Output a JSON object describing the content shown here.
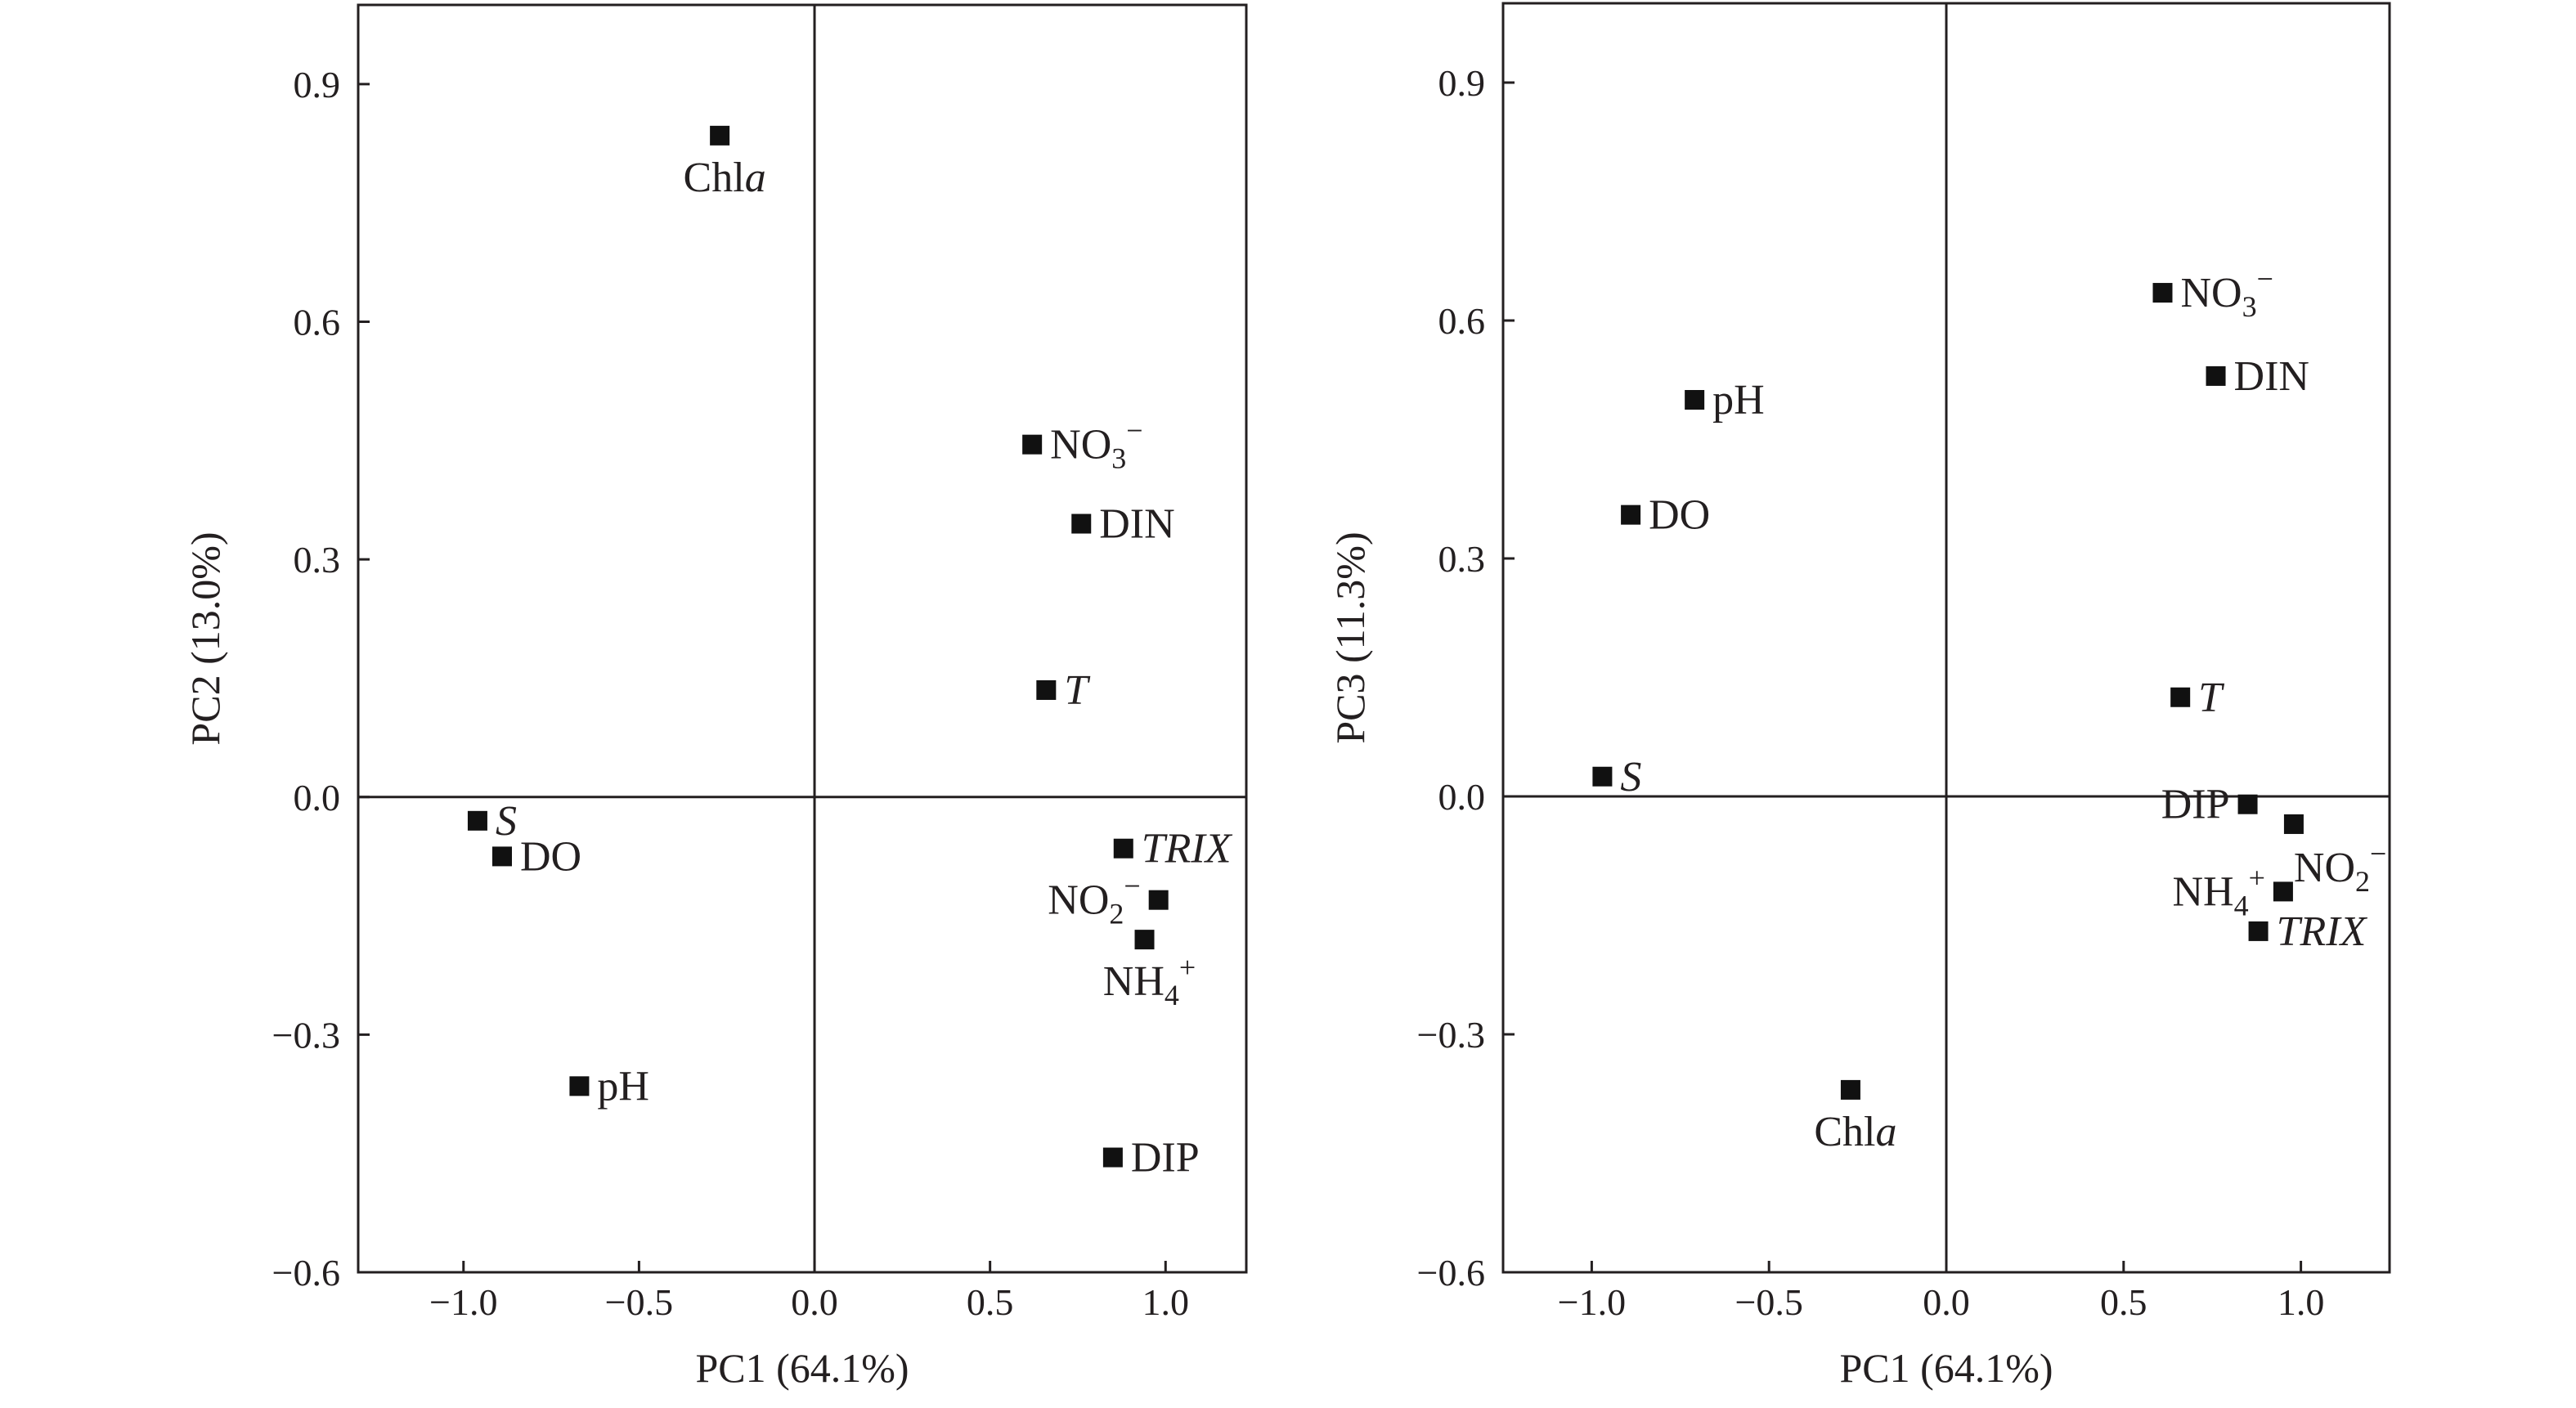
{
  "chart_data": [
    {
      "type": "scatter",
      "title": "",
      "xlabel": "PC1 (64.1%)",
      "ylabel": "PC2 (13.0%)",
      "xlim": [
        -1.3,
        1.23
      ],
      "ylim": [
        -0.6,
        1.0
      ],
      "xticks": [
        -1.0,
        -0.5,
        0.0,
        0.5,
        1.0
      ],
      "xtick_labels": [
        "−1.0",
        "−0.5",
        "0.0",
        "0.5",
        "1.0"
      ],
      "yticks": [
        -0.6,
        -0.3,
        0.0,
        0.3,
        0.6,
        0.9
      ],
      "ytick_labels": [
        "−0.6",
        "−0.3",
        "0.0",
        "0.3",
        "0.6",
        "0.9"
      ],
      "grid": false,
      "legend": "none",
      "points": [
        {
          "name": "Chl",
          "suffix": "a",
          "x": -0.27,
          "y": 0.835,
          "label_pos": "below"
        },
        {
          "name": "NO",
          "sub": "3",
          "sup": "−",
          "x": 0.62,
          "y": 0.445,
          "label_pos": "right"
        },
        {
          "name": "DIN",
          "x": 0.76,
          "y": 0.345,
          "label_pos": "right"
        },
        {
          "name": "T",
          "italic": true,
          "x": 0.66,
          "y": 0.135,
          "label_pos": "right"
        },
        {
          "name": "S",
          "italic": true,
          "x": -0.96,
          "y": -0.03,
          "label_pos": "right"
        },
        {
          "name": "DO",
          "x": -0.89,
          "y": -0.075,
          "label_pos": "right"
        },
        {
          "name": "TRIX",
          "italic": true,
          "x": 0.88,
          "y": -0.065,
          "label_pos": "right"
        },
        {
          "name": "NO",
          "sub": "2",
          "sup": "−",
          "x": 0.98,
          "y": -0.13,
          "label_pos": "left"
        },
        {
          "name": "NH",
          "sub": "4",
          "sup": "+",
          "x": 0.94,
          "y": -0.18,
          "label_pos": "below"
        },
        {
          "name": "pH",
          "x": -0.67,
          "y": -0.365,
          "label_pos": "right"
        },
        {
          "name": "DIP",
          "x": 0.85,
          "y": -0.455,
          "label_pos": "right"
        }
      ]
    },
    {
      "type": "scatter",
      "title": "",
      "xlabel": "PC1 (64.1%)",
      "ylabel": "PC3 (11.3%)",
      "xlim": [
        -1.25,
        1.25
      ],
      "ylim": [
        -0.6,
        1.0
      ],
      "xticks": [
        -1.0,
        -0.5,
        0.0,
        0.5,
        1.0
      ],
      "xtick_labels": [
        "−1.0",
        "−0.5",
        "0.0",
        "0.5",
        "1.0"
      ],
      "yticks": [
        -0.6,
        -0.3,
        0.0,
        0.3,
        0.6,
        0.9
      ],
      "ytick_labels": [
        "−0.6",
        "−0.3",
        "0.0",
        "0.3",
        "0.6",
        "0.9"
      ],
      "grid": false,
      "legend": "none",
      "points": [
        {
          "name": "NO",
          "sub": "3",
          "sup": "−",
          "x": 0.61,
          "y": 0.635,
          "label_pos": "right"
        },
        {
          "name": "DIN",
          "x": 0.76,
          "y": 0.53,
          "label_pos": "right"
        },
        {
          "name": "pH",
          "x": -0.71,
          "y": 0.5,
          "label_pos": "right"
        },
        {
          "name": "DO",
          "x": -0.89,
          "y": 0.355,
          "label_pos": "right"
        },
        {
          "name": "T",
          "italic": true,
          "x": 0.66,
          "y": 0.125,
          "label_pos": "right"
        },
        {
          "name": "S",
          "italic": true,
          "x": -0.97,
          "y": 0.025,
          "label_pos": "right"
        },
        {
          "name": "DIP",
          "x": 0.85,
          "y": -0.01,
          "label_pos": "left"
        },
        {
          "name": "NO",
          "sub": "2",
          "sup": "−",
          "x": 0.98,
          "y": -0.035,
          "label_pos": "below-right"
        },
        {
          "name": "NH",
          "sub": "4",
          "sup": "+",
          "x": 0.95,
          "y": -0.12,
          "label_pos": "left"
        },
        {
          "name": "TRIX",
          "italic": true,
          "x": 0.88,
          "y": -0.17,
          "label_pos": "right"
        },
        {
          "name": "Chl",
          "suffix": "a",
          "x": -0.27,
          "y": -0.37,
          "label_pos": "below"
        }
      ]
    }
  ]
}
